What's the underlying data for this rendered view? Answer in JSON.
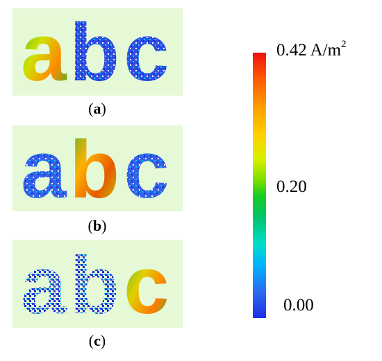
{
  "panels": [
    {
      "id": "a",
      "letters": "abc",
      "caption_open": "(",
      "caption_letter": "a",
      "caption_close": ")",
      "intensity": [
        0.22,
        0.06,
        0.05
      ]
    },
    {
      "id": "b",
      "letters": "abc",
      "caption_open": "(",
      "caption_letter": "b",
      "caption_close": ")",
      "intensity": [
        0.06,
        0.23,
        0.07
      ]
    },
    {
      "id": "c",
      "letters": "abc",
      "caption_open": "(",
      "caption_letter": "c",
      "caption_close": ")",
      "intensity": [
        0.04,
        0.05,
        0.24
      ]
    }
  ],
  "colorbar": {
    "max_label": "0.42 A/m",
    "max_exponent": "2",
    "mid_label": "0.20",
    "min_label": "0.00",
    "colors": [
      "#f01010",
      "#ff9a00",
      "#d8f000",
      "#19cc22",
      "#00ddc8",
      "#2a6cf0",
      "#1f2fe6"
    ]
  },
  "background_color": "#e6f9d6"
}
